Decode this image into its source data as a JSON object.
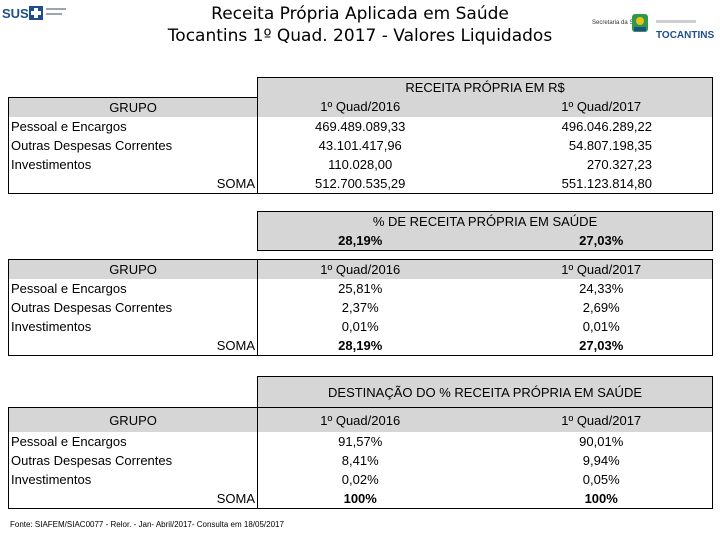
{
  "header": {
    "title_line1": "Receita Própria Aplicada em Saúde",
    "title_line2": "Tocantins 1º Quad. 2017  - Valores Liquidados",
    "logo_left_text": "SUS",
    "logo_right_secretaria": "Secretaria da Saúde",
    "logo_right_state": "TOCANTINS"
  },
  "table1": {
    "header": "RECEITA PRÓPRIA EM R$",
    "grupo_label": "GRUPO",
    "col1": "1º Quad/2016",
    "col2": "1º Quad/2017",
    "rows": [
      {
        "label": "Pessoal e Encargos",
        "v1": "469.489.089,33",
        "v2": "496.046.289,22"
      },
      {
        "label": "Outras Despesas Correntes",
        "v1": "43.101.417,96",
        "v2": "54.807.198,35"
      },
      {
        "label": "Investimentos",
        "v1": "110.028,00",
        "v2": "270.327,23"
      }
    ],
    "soma": {
      "label": "SOMA",
      "v1": "512.700.535,29",
      "v2": "551.123.814,80"
    }
  },
  "table2": {
    "header": "% DE RECEITA PRÓPRIA EM SAÚDE",
    "sub1": "28,19%",
    "sub2": "27,03%",
    "grupo_label": "GRUPO",
    "col1": "1º Quad/2016",
    "col2": "1º Quad/2017",
    "rows": [
      {
        "label": "Pessoal e Encargos",
        "v1": "25,81%",
        "v2": "24,33%"
      },
      {
        "label": "Outras Despesas Correntes",
        "v1": "2,37%",
        "v2": "2,69%"
      },
      {
        "label": "Investimentos",
        "v1": "0,01%",
        "v2": "0,01%"
      }
    ],
    "soma": {
      "label": "SOMA",
      "v1": "28,19%",
      "v2": "27,03%"
    }
  },
  "table3": {
    "header": "DESTINAÇÃO DO %  RECEITA PRÓPRIA EM SAÚDE",
    "grupo_label": "GRUPO",
    "col1": "1º Quad/2016",
    "col2": "1º Quad/2017",
    "rows": [
      {
        "label": "Pessoal e Encargos",
        "v1": "91,57%",
        "v2": "90,01%"
      },
      {
        "label": "Outras Despesas Correntes",
        "v1": "8,41%",
        "v2": "9,94%"
      },
      {
        "label": "Investimentos",
        "v1": "0,02%",
        "v2": "0,05%"
      }
    ],
    "soma": {
      "label": "SOMA",
      "v1": "100%",
      "v2": "100%"
    }
  },
  "footer": "Fonte: SIAFEM/SIAC0077 - Relor. - Jan- Abril/2017- Consulta em 18/05/2017",
  "colors": {
    "header_gray": "#d6d6d6",
    "logo_blue": "#1f4e8c",
    "logo_green": "#2e9a48",
    "logo_yellow": "#e8c21a"
  }
}
